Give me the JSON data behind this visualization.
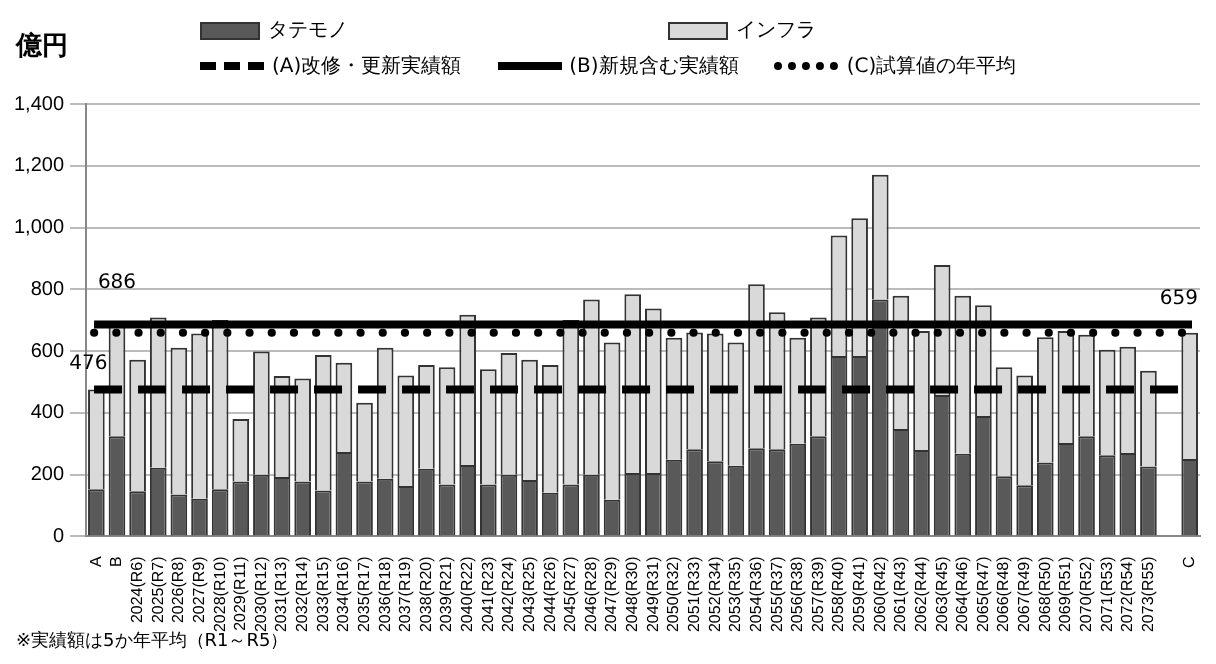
{
  "chart_data": {
    "type": "bar",
    "stacked": true,
    "ylabel": "億円",
    "grid": "y",
    "legend": "top",
    "categories": [
      "A",
      "B",
      "2024(R6)",
      "2025(R7)",
      "2026(R8)",
      "2027(R9)",
      "2028(R10)",
      "2029(R11)",
      "2030(R12)",
      "2031(R13)",
      "2032(R14)",
      "2033(R15)",
      "2034(R16)",
      "2035(R17)",
      "2036(R18)",
      "2037(R19)",
      "2038(R20)",
      "2039(R21)",
      "2040(R22)",
      "2041(R23)",
      "2042(R24)",
      "2043(R25)",
      "2044(R26)",
      "2045(R27)",
      "2046(R28)",
      "2047(R29)",
      "2048(R30)",
      "2049(R31)",
      "2050(R32)",
      "2051(R33)",
      "2052(R34)",
      "2053(R35)",
      "2054(R36)",
      "2055(R37)",
      "2056(R38)",
      "2057(R39)",
      "2058(R40)",
      "2059(R41)",
      "2060(R42)",
      "2061(R43)",
      "2062(R44)",
      "2063(R45)",
      "2064(R46)",
      "2065(R47)",
      "2066(R48)",
      "2067(R49)",
      "2068(R50)",
      "2069(R51)",
      "2070(R52)",
      "2071(R53)",
      "2072(R54)",
      "2073(R55)",
      null,
      "C"
    ],
    "series": [
      {
        "name": "タテモノ",
        "color": "#595959",
        "values": [
          153,
          324,
          146,
          222,
          136,
          122,
          153,
          178,
          200,
          192,
          178,
          149,
          273,
          178,
          187,
          163,
          219,
          168,
          231,
          168,
          200,
          183,
          141,
          168,
          200,
          119,
          205,
          205,
          248,
          282,
          243,
          229,
          285,
          282,
          300,
          324,
          584,
          584,
          767,
          348,
          280,
          458,
          268,
          390,
          195,
          166,
          239,
          302,
          324,
          263,
          270,
          226,
          null,
          251
        ]
      },
      {
        "name": "インフラ",
        "color": "#d9d9d9",
        "values": [
          323,
          362,
          426,
          487,
          475,
          535,
          548,
          202,
          399,
          327,
          333,
          438,
          289,
          255,
          424,
          358,
          336,
          380,
          487,
          373,
          394,
          389,
          414,
          533,
          567,
          509,
          579,
          533,
          395,
          378,
          414,
          399,
          531,
          444,
          343,
          385,
          390,
          446,
          404,
          431,
          385,
          421,
          511,
          358,
          353,
          355,
          406,
          363,
          329,
          341,
          344,
          310,
          null,
          408
        ]
      }
    ],
    "ylim": [
      0,
      1400
    ],
    "yticks": [
      0,
      200,
      400,
      600,
      800,
      {
        "value": 1000,
        "label": "1,000"
      },
      {
        "value": 1200,
        "label": "1,200"
      },
      {
        "value": 1400,
        "label": "1,400"
      }
    ],
    "ref_lines": [
      {
        "axis": "y",
        "value": 476,
        "label": "(A)改修・更新実績額",
        "color": "#000000",
        "line_style": "dashed"
      },
      {
        "axis": "y",
        "value": 686,
        "label": "(B)新規含む実績額",
        "color": "#000000",
        "line_style": "solid"
      },
      {
        "axis": "y",
        "value": 659,
        "label": "(C)試算値の年平均",
        "color": "#000000",
        "line_style": "dotted"
      }
    ],
    "annotations": [
      {
        "text": "476",
        "x": "A",
        "y": 476
      },
      {
        "text": "686",
        "x": "B",
        "y": 686
      },
      {
        "text": "659",
        "x": "C",
        "y": 659
      },
      "※実績額は5か年平均（R1～R5）"
    ]
  }
}
